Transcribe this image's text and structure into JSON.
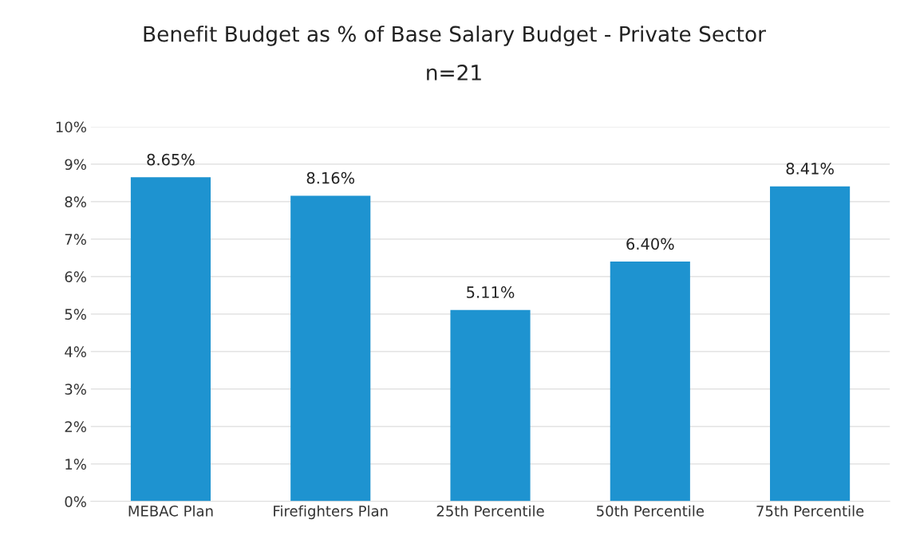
{
  "chart_data": {
    "type": "bar",
    "title": "Benefit Budget as % of Base Salary Budget - Private Sector",
    "subtitle": "n=21",
    "categories": [
      "MEBAC Plan",
      "Firefighters Plan",
      "25th Percentile",
      "50th Percentile",
      "75th Percentile"
    ],
    "values": [
      8.65,
      8.16,
      5.11,
      6.4,
      8.41
    ],
    "value_labels": [
      "8.65%",
      "8.16%",
      "5.11%",
      "6.40%",
      "8.41%"
    ],
    "color": "#1e93d0",
    "ylim": [
      0,
      10
    ],
    "yticks": [
      {
        "value": 0,
        "label": "0%"
      },
      {
        "value": 1,
        "label": "1%"
      },
      {
        "value": 2,
        "label": "2%"
      },
      {
        "value": 3,
        "label": "3%"
      },
      {
        "value": 4,
        "label": "4%"
      },
      {
        "value": 5,
        "label": "5%"
      },
      {
        "value": 6,
        "label": "6%"
      },
      {
        "value": 7,
        "label": "7%"
      },
      {
        "value": 8,
        "label": "8%"
      },
      {
        "value": 9,
        "label": "9%"
      },
      {
        "value": 10,
        "label": "10%"
      }
    ],
    "grid": "y",
    "legend": false
  }
}
